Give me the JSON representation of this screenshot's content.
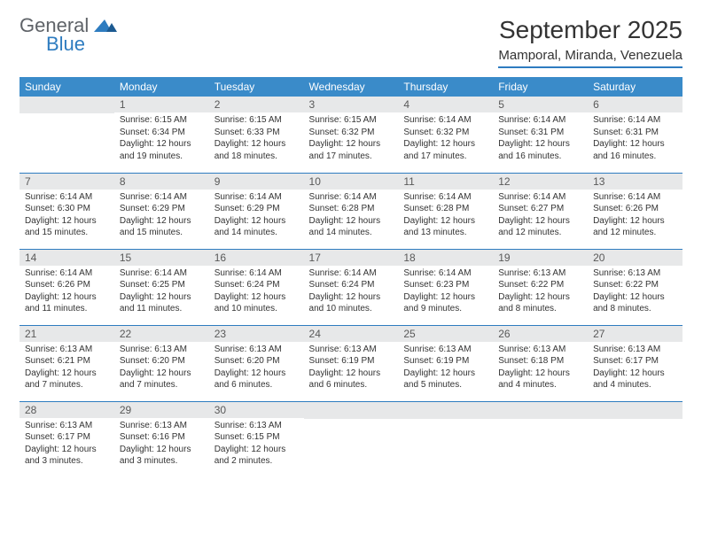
{
  "logo": {
    "text_general": "General",
    "text_blue": "Blue",
    "tri_color": "#2e7cc0"
  },
  "title": "September 2025",
  "location": "Mamporal, Miranda, Venezuela",
  "colors": {
    "header_bg": "#3a8bc9",
    "header_text": "#ffffff",
    "row_divider": "#2e7cc0",
    "daynum_bg": "#e7e8e9",
    "daynum_text": "#595959",
    "body_text": "#333333"
  },
  "weekdays": [
    "Sunday",
    "Monday",
    "Tuesday",
    "Wednesday",
    "Thursday",
    "Friday",
    "Saturday"
  ],
  "weeks": [
    [
      {
        "n": "",
        "sunrise": "",
        "sunset": "",
        "daylight": ""
      },
      {
        "n": "1",
        "sunrise": "Sunrise: 6:15 AM",
        "sunset": "Sunset: 6:34 PM",
        "daylight": "Daylight: 12 hours and 19 minutes."
      },
      {
        "n": "2",
        "sunrise": "Sunrise: 6:15 AM",
        "sunset": "Sunset: 6:33 PM",
        "daylight": "Daylight: 12 hours and 18 minutes."
      },
      {
        "n": "3",
        "sunrise": "Sunrise: 6:15 AM",
        "sunset": "Sunset: 6:32 PM",
        "daylight": "Daylight: 12 hours and 17 minutes."
      },
      {
        "n": "4",
        "sunrise": "Sunrise: 6:14 AM",
        "sunset": "Sunset: 6:32 PM",
        "daylight": "Daylight: 12 hours and 17 minutes."
      },
      {
        "n": "5",
        "sunrise": "Sunrise: 6:14 AM",
        "sunset": "Sunset: 6:31 PM",
        "daylight": "Daylight: 12 hours and 16 minutes."
      },
      {
        "n": "6",
        "sunrise": "Sunrise: 6:14 AM",
        "sunset": "Sunset: 6:31 PM",
        "daylight": "Daylight: 12 hours and 16 minutes."
      }
    ],
    [
      {
        "n": "7",
        "sunrise": "Sunrise: 6:14 AM",
        "sunset": "Sunset: 6:30 PM",
        "daylight": "Daylight: 12 hours and 15 minutes."
      },
      {
        "n": "8",
        "sunrise": "Sunrise: 6:14 AM",
        "sunset": "Sunset: 6:29 PM",
        "daylight": "Daylight: 12 hours and 15 minutes."
      },
      {
        "n": "9",
        "sunrise": "Sunrise: 6:14 AM",
        "sunset": "Sunset: 6:29 PM",
        "daylight": "Daylight: 12 hours and 14 minutes."
      },
      {
        "n": "10",
        "sunrise": "Sunrise: 6:14 AM",
        "sunset": "Sunset: 6:28 PM",
        "daylight": "Daylight: 12 hours and 14 minutes."
      },
      {
        "n": "11",
        "sunrise": "Sunrise: 6:14 AM",
        "sunset": "Sunset: 6:28 PM",
        "daylight": "Daylight: 12 hours and 13 minutes."
      },
      {
        "n": "12",
        "sunrise": "Sunrise: 6:14 AM",
        "sunset": "Sunset: 6:27 PM",
        "daylight": "Daylight: 12 hours and 12 minutes."
      },
      {
        "n": "13",
        "sunrise": "Sunrise: 6:14 AM",
        "sunset": "Sunset: 6:26 PM",
        "daylight": "Daylight: 12 hours and 12 minutes."
      }
    ],
    [
      {
        "n": "14",
        "sunrise": "Sunrise: 6:14 AM",
        "sunset": "Sunset: 6:26 PM",
        "daylight": "Daylight: 12 hours and 11 minutes."
      },
      {
        "n": "15",
        "sunrise": "Sunrise: 6:14 AM",
        "sunset": "Sunset: 6:25 PM",
        "daylight": "Daylight: 12 hours and 11 minutes."
      },
      {
        "n": "16",
        "sunrise": "Sunrise: 6:14 AM",
        "sunset": "Sunset: 6:24 PM",
        "daylight": "Daylight: 12 hours and 10 minutes."
      },
      {
        "n": "17",
        "sunrise": "Sunrise: 6:14 AM",
        "sunset": "Sunset: 6:24 PM",
        "daylight": "Daylight: 12 hours and 10 minutes."
      },
      {
        "n": "18",
        "sunrise": "Sunrise: 6:14 AM",
        "sunset": "Sunset: 6:23 PM",
        "daylight": "Daylight: 12 hours and 9 minutes."
      },
      {
        "n": "19",
        "sunrise": "Sunrise: 6:13 AM",
        "sunset": "Sunset: 6:22 PM",
        "daylight": "Daylight: 12 hours and 8 minutes."
      },
      {
        "n": "20",
        "sunrise": "Sunrise: 6:13 AM",
        "sunset": "Sunset: 6:22 PM",
        "daylight": "Daylight: 12 hours and 8 minutes."
      }
    ],
    [
      {
        "n": "21",
        "sunrise": "Sunrise: 6:13 AM",
        "sunset": "Sunset: 6:21 PM",
        "daylight": "Daylight: 12 hours and 7 minutes."
      },
      {
        "n": "22",
        "sunrise": "Sunrise: 6:13 AM",
        "sunset": "Sunset: 6:20 PM",
        "daylight": "Daylight: 12 hours and 7 minutes."
      },
      {
        "n": "23",
        "sunrise": "Sunrise: 6:13 AM",
        "sunset": "Sunset: 6:20 PM",
        "daylight": "Daylight: 12 hours and 6 minutes."
      },
      {
        "n": "24",
        "sunrise": "Sunrise: 6:13 AM",
        "sunset": "Sunset: 6:19 PM",
        "daylight": "Daylight: 12 hours and 6 minutes."
      },
      {
        "n": "25",
        "sunrise": "Sunrise: 6:13 AM",
        "sunset": "Sunset: 6:19 PM",
        "daylight": "Daylight: 12 hours and 5 minutes."
      },
      {
        "n": "26",
        "sunrise": "Sunrise: 6:13 AM",
        "sunset": "Sunset: 6:18 PM",
        "daylight": "Daylight: 12 hours and 4 minutes."
      },
      {
        "n": "27",
        "sunrise": "Sunrise: 6:13 AM",
        "sunset": "Sunset: 6:17 PM",
        "daylight": "Daylight: 12 hours and 4 minutes."
      }
    ],
    [
      {
        "n": "28",
        "sunrise": "Sunrise: 6:13 AM",
        "sunset": "Sunset: 6:17 PM",
        "daylight": "Daylight: 12 hours and 3 minutes."
      },
      {
        "n": "29",
        "sunrise": "Sunrise: 6:13 AM",
        "sunset": "Sunset: 6:16 PM",
        "daylight": "Daylight: 12 hours and 3 minutes."
      },
      {
        "n": "30",
        "sunrise": "Sunrise: 6:13 AM",
        "sunset": "Sunset: 6:15 PM",
        "daylight": "Daylight: 12 hours and 2 minutes."
      },
      {
        "n": "",
        "sunrise": "",
        "sunset": "",
        "daylight": ""
      },
      {
        "n": "",
        "sunrise": "",
        "sunset": "",
        "daylight": ""
      },
      {
        "n": "",
        "sunrise": "",
        "sunset": "",
        "daylight": ""
      },
      {
        "n": "",
        "sunrise": "",
        "sunset": "",
        "daylight": ""
      }
    ]
  ]
}
